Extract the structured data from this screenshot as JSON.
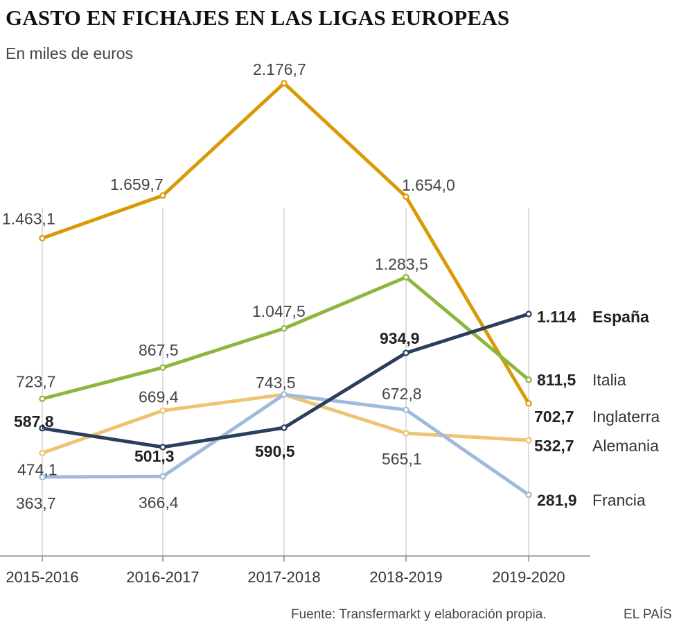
{
  "chart_data": {
    "type": "line",
    "title": "GASTO EN FICHAJES EN LAS LIGAS EUROPEAS",
    "subtitle": "En miles de euros",
    "categories": [
      "2015-2016",
      "2016-2017",
      "2017-2018",
      "2018-2019",
      "2019-2020"
    ],
    "ylim": [
      0,
      2300
    ],
    "series": [
      {
        "name": "Inglaterra",
        "color": "#d99a05",
        "values": [
          1463.1,
          1659.7,
          2176.7,
          1654.0,
          702.7
        ],
        "labels": [
          "1.463,1",
          "1.659,7",
          "2.176,7",
          "1.654,0",
          "702,7"
        ]
      },
      {
        "name": "Italia",
        "color": "#8db63c",
        "values": [
          723.7,
          867.5,
          1047.5,
          1283.5,
          811.5
        ],
        "labels": [
          "723,7",
          "867,5",
          "1.047,5",
          "1.283,5",
          "811,5"
        ]
      },
      {
        "name": "Alemania",
        "color": "#eec472",
        "values": [
          474.1,
          669.4,
          743.5,
          565.1,
          532.7
        ],
        "labels": [
          "474,1",
          "669,4",
          "",
          "565,1",
          "532,7"
        ]
      },
      {
        "name": "Francia",
        "color": "#9fbadc",
        "values": [
          363.7,
          366.4,
          743.5,
          672.8,
          281.9
        ],
        "labels": [
          "363,7",
          "366,4",
          "743,5",
          "672,8",
          "281,9"
        ]
      },
      {
        "name": "España",
        "color": "#2a3f5e",
        "values": [
          587.8,
          501.3,
          590.5,
          934.9,
          1114
        ],
        "labels": [
          "587,8",
          "501,3",
          "590,5",
          "934,9",
          "1.114"
        ]
      }
    ]
  },
  "footer": {
    "source": "Fuente: Transfermarkt y elaboración propia.",
    "brand": "EL PAÍS"
  }
}
